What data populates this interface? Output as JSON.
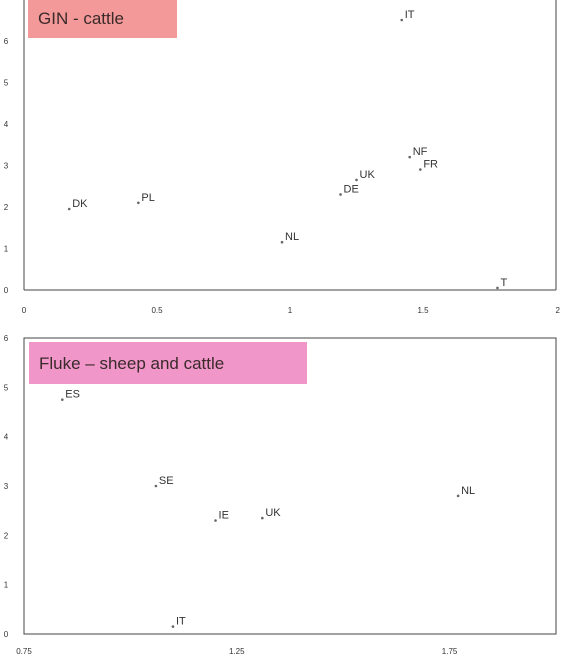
{
  "chart_data": [
    {
      "type": "scatter",
      "title": "GIN - cattle",
      "title_bg": "#f49999",
      "xlim": [
        0,
        2
      ],
      "ylim": [
        0,
        6.5
      ],
      "x_ticks": [
        "0",
        "0.5",
        "1",
        "1.5",
        "2"
      ],
      "x_tick_values": [
        0,
        0.5,
        1,
        1.5,
        2
      ],
      "y_ticks": [
        "0",
        "1",
        "2",
        "3",
        "4",
        "5",
        "6"
      ],
      "y_tick_values": [
        0,
        1,
        2,
        3,
        4,
        5,
        6
      ],
      "grid": false,
      "points": [
        {
          "label": "IT",
          "x": 1.42,
          "y": 6.5
        },
        {
          "label": "NF",
          "x": 1.45,
          "y": 3.2
        },
        {
          "label": "FR",
          "x": 1.49,
          "y": 2.9
        },
        {
          "label": "UK",
          "x": 1.25,
          "y": 2.65
        },
        {
          "label": "DE",
          "x": 1.19,
          "y": 2.3
        },
        {
          "label": "PL",
          "x": 0.43,
          "y": 2.1
        },
        {
          "label": "DK",
          "x": 0.17,
          "y": 1.95
        },
        {
          "label": "NL",
          "x": 0.97,
          "y": 1.15
        },
        {
          "label": "T",
          "x": 1.78,
          "y": 0.05
        }
      ]
    },
    {
      "type": "scatter",
      "title": "Fluke – sheep and cattle",
      "title_bg": "#f096c8",
      "xlim": [
        0.75,
        2
      ],
      "ylim": [
        0,
        6
      ],
      "x_ticks": [
        "0.75",
        "1.25",
        "1.75"
      ],
      "x_tick_values": [
        0.75,
        1.25,
        1.75
      ],
      "y_ticks": [
        "0",
        "1",
        "2",
        "3",
        "4",
        "5",
        "6"
      ],
      "y_tick_values": [
        0,
        1,
        2,
        3,
        4,
        5,
        6
      ],
      "grid": false,
      "points": [
        {
          "label": "ES",
          "x": 0.84,
          "y": 4.75
        },
        {
          "label": "SE",
          "x": 1.06,
          "y": 3.0
        },
        {
          "label": "IE",
          "x": 1.2,
          "y": 2.3
        },
        {
          "label": "UK",
          "x": 1.31,
          "y": 2.35
        },
        {
          "label": "NL",
          "x": 1.77,
          "y": 2.8
        },
        {
          "label": "IT",
          "x": 1.1,
          "y": 0.15
        }
      ]
    }
  ]
}
